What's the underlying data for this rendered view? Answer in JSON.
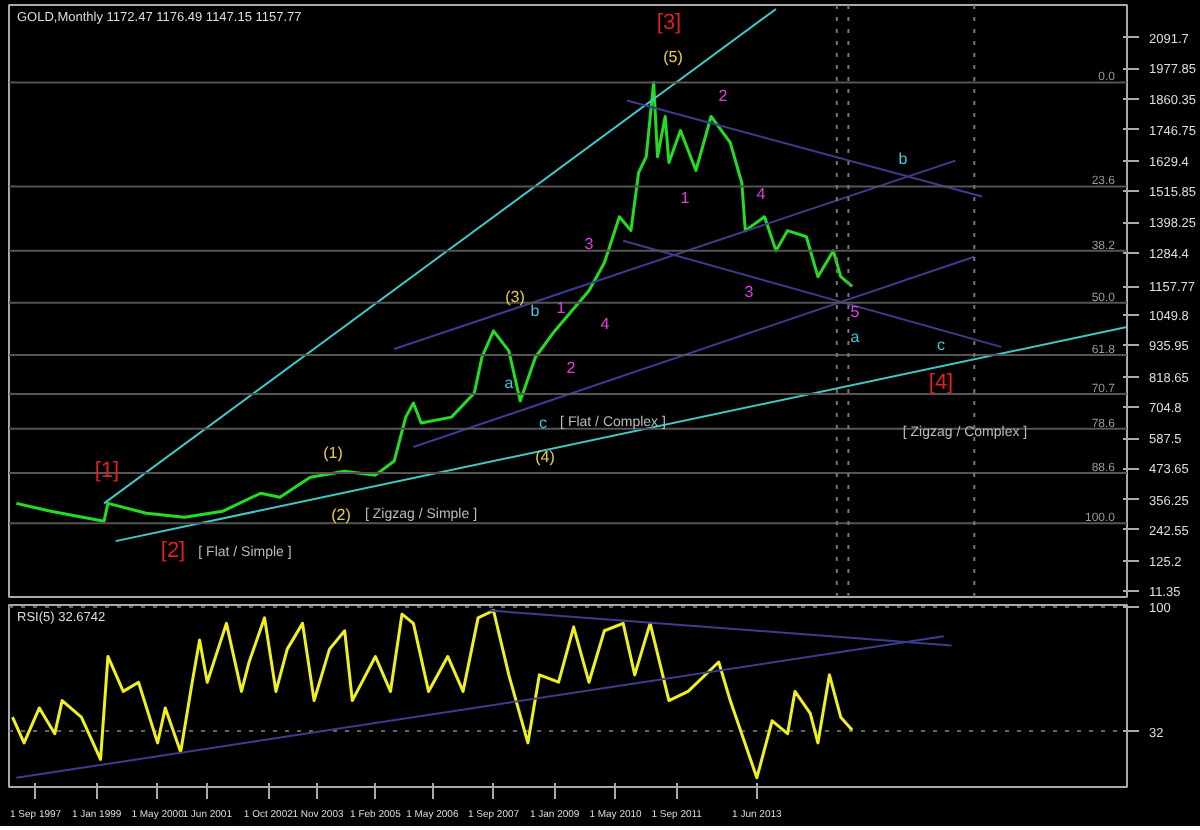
{
  "chart_data": [
    {
      "type": "line",
      "title": "GOLD,Monthly  1172.47 1176.49 1147.15 1157.77",
      "xlim": [
        "1997-02",
        "2021-07"
      ],
      "ylim": [
        -10,
        2215
      ],
      "yticks": [
        11.35,
        125.2,
        242.55,
        356.25,
        473.65,
        587.5,
        704.8,
        818.65,
        935.95,
        1049.8,
        1157.77,
        1284.4,
        1398.25,
        1515.85,
        1629.4,
        1746.75,
        1860.35,
        1977.85,
        2091.7
      ],
      "tick_labels": "y",
      "grid": false,
      "series": [
        {
          "color": "#22dd22",
          "x": [
            "1997-04",
            "1998-01",
            "1999-03",
            "1999-04",
            "2000-02",
            "2000-12",
            "2001-10",
            "2002-08",
            "2003-01",
            "2003-09",
            "2004-06",
            "2005-02",
            "2005-07",
            "2005-10",
            "2005-12",
            "2006-02",
            "2006-10",
            "2007-04",
            "2007-06",
            "2007-09",
            "2008-01",
            "2008-04",
            "2008-08",
            "2009-01",
            "2009-10",
            "2010-02",
            "2010-06",
            "2010-09",
            "2010-11",
            "2011-01",
            "2011-03",
            "2011-04",
            "2011-06",
            "2011-07",
            "2011-10",
            "2012-02",
            "2012-06",
            "2012-11",
            "2013-02",
            "2013-03",
            "2013-08",
            "2013-11",
            "2014-02",
            "2014-07",
            "2014-10",
            "2015-02",
            "2015-04",
            "2015-07"
          ],
          "values": [
            342,
            312,
            275,
            342,
            305,
            290,
            312,
            380,
            365,
            440,
            463,
            448,
            501,
            666,
            719,
            644,
            666,
            757,
            892,
            990,
            915,
            727,
            892,
            990,
            1141,
            1246,
            1419,
            1367,
            1585,
            1645,
            1924,
            1645,
            1796,
            1623,
            1743,
            1593,
            1796,
            1698,
            1547,
            1367,
            1419,
            1291,
            1367,
            1344,
            1194,
            1291,
            1194,
            1157.77
          ]
        },
        {
          "color": "#40c8c8",
          "x": [
            "1999-03",
            "2013-11"
          ],
          "values": [
            342,
            2200
          ]
        },
        {
          "color": "#40c8c8",
          "x": [
            "1999-06",
            "2021-07"
          ],
          "values": [
            200,
            1005
          ]
        },
        {
          "color": "#3c3c90",
          "x": [
            "2010-08",
            "2018-05"
          ],
          "values": [
            1856,
            1495
          ]
        },
        {
          "color": "#3c3c90",
          "x": [
            "2010-07",
            "2018-10"
          ],
          "values": [
            1329,
            930
          ]
        },
        {
          "color": "#3c3c90",
          "x": [
            "2005-07",
            "2017-10"
          ],
          "values": [
            922,
            1630
          ]
        },
        {
          "color": "#3c3c90",
          "x": [
            "2005-12",
            "2018-03"
          ],
          "values": [
            554,
            1269
          ]
        }
      ],
      "ref_lines": [
        {
          "axis": "y",
          "value": 1924,
          "color": "#555555"
        },
        {
          "axis": "y",
          "value": 1533,
          "color": "#555555"
        },
        {
          "axis": "y",
          "value": 1291,
          "color": "#555555"
        },
        {
          "axis": "y",
          "value": 1096,
          "color": "#555555"
        },
        {
          "axis": "y",
          "value": 900,
          "color": "#555555"
        },
        {
          "axis": "y",
          "value": 753,
          "color": "#555555"
        },
        {
          "axis": "y",
          "value": 622,
          "color": "#555555"
        },
        {
          "axis": "y",
          "value": 456,
          "color": "#555555"
        },
        {
          "axis": "y",
          "value": 267,
          "color": "#555555"
        },
        {
          "axis": "x",
          "value": "2015-03",
          "color": "#777777",
          "line_style": "dotted"
        },
        {
          "axis": "x",
          "value": "2015-06",
          "color": "#777777",
          "line_style": "dotted"
        },
        {
          "axis": "x",
          "value": "2018-03",
          "color": "#777777",
          "line_style": "dotted"
        }
      ],
      "annotations": [
        "[1]",
        "[2]",
        "[ Flat / Simple ]",
        "(1)",
        "(2)",
        "[ Zigzag / Simple ]",
        "(3)",
        "b",
        "a",
        "c",
        "[ Flat / Complex ]",
        "(4)",
        "1",
        "2",
        "3",
        "4",
        "(5)",
        "[3]",
        "1",
        "2",
        "3",
        "4",
        "5",
        "a",
        "b",
        "c",
        "[4]",
        "[ Zigzag / Complex ]",
        "0.0",
        "23.6",
        "38.2",
        "50.0",
        "61.8",
        "70.7",
        "78.6",
        "88.6",
        "100.0"
      ]
    },
    {
      "type": "line",
      "title": "RSI(5) 32.6742",
      "xlim": [
        "1997-02",
        "2021-07"
      ],
      "ylim": [
        2,
        101
      ],
      "yticks": [
        100,
        32
      ],
      "grid": "y",
      "xticks": [
        {
          "value": "1997-09-01",
          "label": "1 Sep 1997"
        },
        {
          "value": "1999-01-01",
          "label": "1 Jan 1999"
        },
        {
          "value": "2000-05-01",
          "label": "1 May 2000"
        },
        {
          "value": "2001-06-01",
          "label": "1 Jun 2001"
        },
        {
          "value": "2002-10-01",
          "label": "1 Oct 2002"
        },
        {
          "value": "2003-11-01",
          "label": "1 Nov 2003"
        },
        {
          "value": "2005-02-01",
          "label": "1 Feb 2005"
        },
        {
          "value": "2006-05-01",
          "label": "1 May 2006"
        },
        {
          "value": "2007-09-01",
          "label": "1 Sep 2007"
        },
        {
          "value": "2009-01-01",
          "label": "1 Jan 2009"
        },
        {
          "value": "2010-05-01",
          "label": "1 May 2010"
        },
        {
          "value": "2011-09-01",
          "label": "1 Sep 2011"
        },
        {
          "value": "2013-06-01",
          "label": "1 Jun 2013"
        }
      ],
      "series": [
        {
          "color": "#f0f020",
          "x": [
            "1997-03",
            "1997-06",
            "1997-10",
            "1998-02",
            "1998-04",
            "1998-09",
            "1999-02",
            "1999-04",
            "1999-08",
            "1999-12",
            "2000-05",
            "2000-07",
            "2000-11",
            "2001-02",
            "2001-04",
            "2001-06",
            "2001-11",
            "2002-03",
            "2002-05",
            "2002-09",
            "2002-12",
            "2003-03",
            "2003-07",
            "2003-10",
            "2004-02",
            "2004-06",
            "2004-08",
            "2005-02",
            "2005-06",
            "2005-09",
            "2005-12",
            "2006-04",
            "2006-09",
            "2007-01",
            "2007-05",
            "2007-09",
            "2008-01",
            "2008-06",
            "2008-09",
            "2009-02",
            "2009-06",
            "2009-10",
            "2010-02",
            "2010-07",
            "2010-10",
            "2011-02",
            "2011-07",
            "2011-12",
            "2012-08",
            "2012-11",
            "2013-06",
            "2013-10",
            "2014-02",
            "2014-04",
            "2014-08",
            "2014-10",
            "2015-01",
            "2015-04",
            "2015-07"
          ],
          "values": [
            40,
            26,
            45,
            31,
            49,
            40,
            17,
            73,
            54,
            59,
            26,
            45,
            21,
            59,
            82,
            59,
            91,
            54,
            70,
            94,
            54,
            77,
            91,
            49,
            77,
            87,
            49,
            73,
            54,
            96,
            91,
            54,
            73,
            54,
            94,
            98,
            63,
            26,
            63,
            59,
            89,
            59,
            87,
            91,
            63,
            91,
            49,
            54,
            70,
            49,
            7,
            38,
            31,
            54,
            42,
            26,
            63,
            40,
            33
          ]
        },
        {
          "color": "#3c3c90",
          "x": [
            "1997-04",
            "2017-07"
          ],
          "values": [
            7,
            84
          ]
        },
        {
          "color": "#3c3c90",
          "x": [
            "2007-08",
            "2017-09"
          ],
          "values": [
            98,
            79
          ]
        }
      ]
    }
  ]
}
